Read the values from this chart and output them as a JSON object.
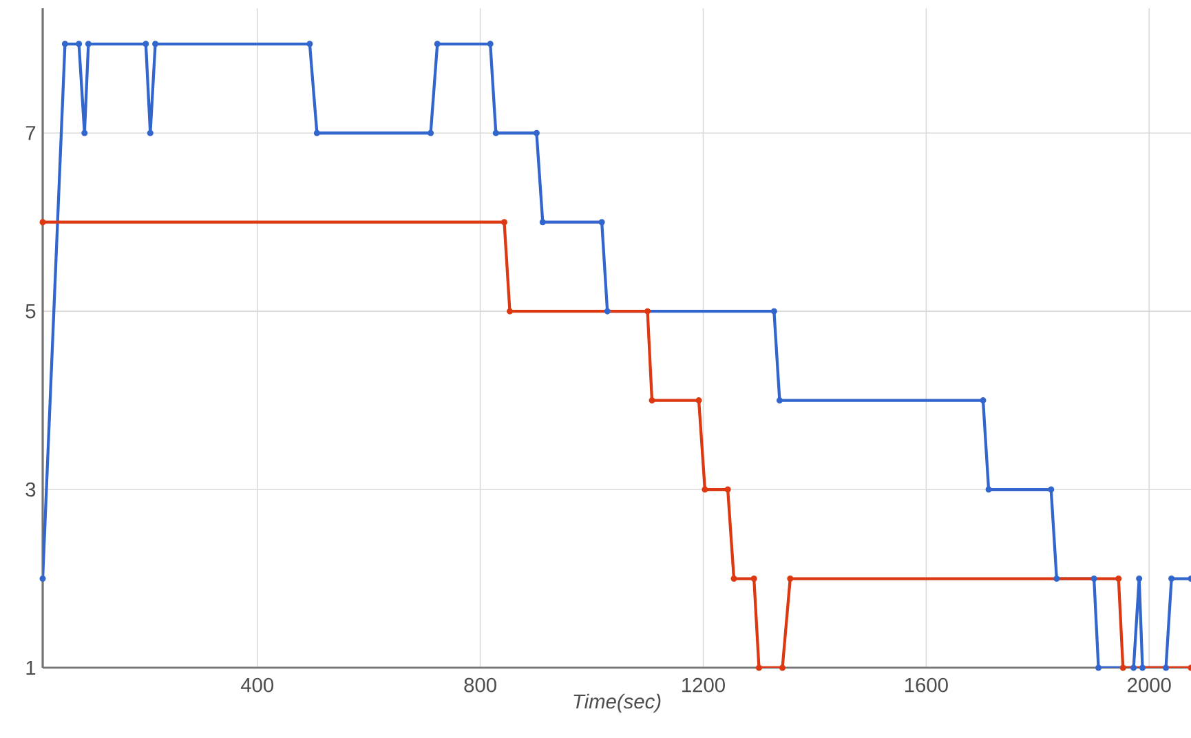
{
  "chart_data": {
    "type": "line",
    "xlabel": "Time(sec)",
    "xlim": [
      15,
      2075
    ],
    "ylim": [
      1,
      8.4
    ],
    "xticks": [
      400,
      800,
      1200,
      1600,
      2000
    ],
    "yticks": [
      1,
      3,
      5,
      7
    ],
    "grid": true,
    "marker": "circle",
    "line_style": "solid",
    "series": [
      {
        "color": "#3366cc",
        "x": [
          15,
          55,
          80,
          90,
          97,
          200,
          208,
          217,
          494,
          507,
          711,
          723,
          818,
          828,
          901,
          912,
          1018,
          1028,
          1327,
          1337,
          1702,
          1712,
          1824,
          1834,
          1901,
          1909,
          1972,
          1982,
          1988,
          2030,
          2040,
          2075
        ],
        "values": [
          2,
          8,
          8,
          7,
          8,
          8,
          7,
          8,
          8,
          7,
          7,
          8,
          8,
          7,
          7,
          6,
          6,
          5,
          5,
          4,
          4,
          3,
          3,
          2,
          2,
          1,
          1,
          2,
          1,
          1,
          2,
          2
        ]
      },
      {
        "color": "#dc3912",
        "x": [
          15,
          843,
          853,
          1100,
          1108,
          1192,
          1203,
          1244,
          1255,
          1291,
          1300,
          1342,
          1356,
          1945,
          1953,
          2075
        ],
        "values": [
          6,
          6,
          5,
          5,
          4,
          4,
          3,
          3,
          2,
          2,
          1,
          1,
          2,
          2,
          1,
          1
        ]
      }
    ]
  }
}
